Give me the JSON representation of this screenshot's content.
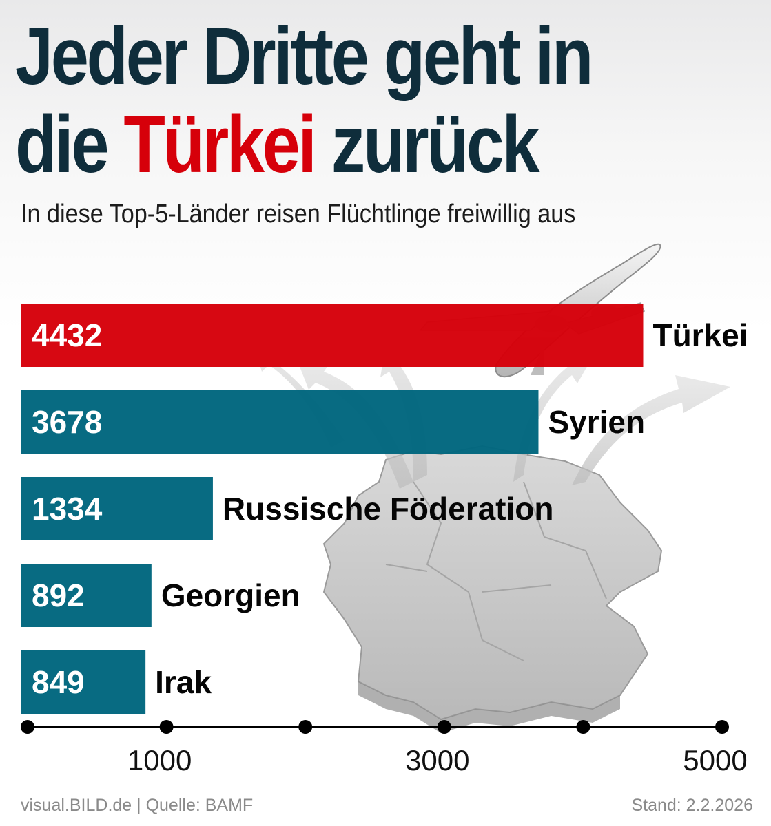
{
  "title": {
    "line1": "Jeder Dritte geht in",
    "line2_before": "die ",
    "line2_highlight": "Türkei",
    "line2_after": " zurück"
  },
  "subtitle": "In diese Top-5-Länder reisen Flüchtlinge freiwillig aus",
  "colors": {
    "title": "#0f2d3b",
    "highlight": "#d6000a",
    "bar_top": "#d6000a",
    "bar_other": "#00667e",
    "axis": "#000000"
  },
  "chart_data": {
    "type": "bar",
    "orientation": "horizontal",
    "categories": [
      "Türkei",
      "Syrien",
      "Russische Föderation",
      "Georgien",
      "Irak"
    ],
    "values": [
      4432,
      3678,
      1334,
      892,
      849
    ],
    "value_labels": [
      "4432",
      "3678",
      "1334",
      "892",
      "849"
    ],
    "xlim": [
      0,
      5000
    ],
    "x_ticks": [
      0,
      1000,
      2000,
      3000,
      4000,
      5000
    ],
    "x_tick_labels": [
      "",
      "1000",
      "",
      "3000",
      "",
      "5000"
    ],
    "grid": false,
    "highlight_category": "Türkei"
  },
  "footer": {
    "source": "visual.BILD.de | Quelle: BAMF",
    "date": "Stand: 2.2.2026"
  }
}
